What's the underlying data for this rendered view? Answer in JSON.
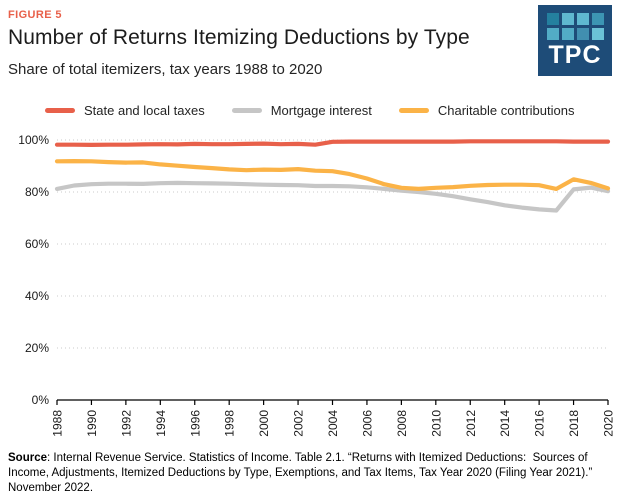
{
  "header": {
    "figure_label": "FIGURE 5"
  },
  "colors": {
    "accent": "#E8604A",
    "grid": "#CBCBCB",
    "axis": "#000000",
    "tick_text": "#1a1a1a"
  },
  "logo": {
    "text": "TPC",
    "bg": "#1E4C78",
    "squares": [
      "#24809F",
      "#5FB8D0",
      "#5FB8D0",
      "#3C95B3",
      "#52ACC6",
      "#52ACC6",
      "#418FB0",
      "#6BC2D6"
    ]
  },
  "chart_data": {
    "type": "line",
    "title": "Number of Returns Itemizing Deductions by Type",
    "subtitle": "Share of total itemizers, tax years 1988 to 2020",
    "xlabel": "",
    "ylabel": "",
    "legend_position": "top",
    "grid": "horizontal dotted",
    "ylim": [
      0,
      100
    ],
    "yticks": [
      0,
      20,
      40,
      60,
      80,
      100
    ],
    "ytick_suffix": "%",
    "x_tick_step": 2,
    "x": [
      1988,
      1989,
      1990,
      1991,
      1992,
      1993,
      1994,
      1995,
      1996,
      1997,
      1998,
      1999,
      2000,
      2001,
      2002,
      2003,
      2004,
      2005,
      2006,
      2007,
      2008,
      2009,
      2010,
      2011,
      2012,
      2013,
      2014,
      2015,
      2016,
      2017,
      2018,
      2019,
      2020
    ],
    "series": [
      {
        "name": "State and local taxes",
        "color": "#E8604A",
        "values": [
          98.2,
          98.2,
          98.1,
          98.2,
          98.2,
          98.3,
          98.4,
          98.3,
          98.5,
          98.4,
          98.4,
          98.5,
          98.6,
          98.4,
          98.5,
          98.2,
          99.3,
          99.4,
          99.4,
          99.4,
          99.4,
          99.4,
          99.4,
          99.4,
          99.5,
          99.5,
          99.5,
          99.5,
          99.5,
          99.5,
          99.4,
          99.4,
          99.4
        ]
      },
      {
        "name": "Mortgage interest",
        "color": "#C6C6C6",
        "values": [
          81.2,
          82.5,
          83.0,
          83.2,
          83.2,
          83.1,
          83.4,
          83.5,
          83.4,
          83.3,
          83.2,
          83.0,
          82.8,
          82.7,
          82.6,
          82.3,
          82.3,
          82.2,
          81.8,
          81.2,
          80.5,
          80.0,
          79.3,
          78.4,
          77.2,
          76.1,
          74.9,
          74.0,
          73.3,
          72.9,
          81.0,
          81.7,
          80.3
        ]
      },
      {
        "name": "Charitable contributions",
        "color": "#FBB347",
        "values": [
          91.8,
          91.9,
          91.8,
          91.5,
          91.3,
          91.4,
          90.6,
          90.1,
          89.6,
          89.2,
          88.7,
          88.4,
          88.6,
          88.5,
          88.8,
          88.2,
          88.0,
          86.9,
          85.2,
          83.0,
          81.6,
          81.2,
          81.6,
          81.9,
          82.4,
          82.7,
          82.8,
          82.8,
          82.6,
          81.2,
          84.9,
          83.5,
          81.4
        ]
      }
    ],
    "draw_order": [
      1,
      2,
      0
    ]
  },
  "footer": {
    "source_label": "Source",
    "source_text": ": Internal Revenue Service. Statistics of Income. Table 2.1. “Returns with Itemized Deductions:  Sources of Income, Adjustments, Itemized Deductions by Type, Exemptions, and Tax Items, Tax Year 2020 (Filing Year 2021).” November 2022."
  }
}
